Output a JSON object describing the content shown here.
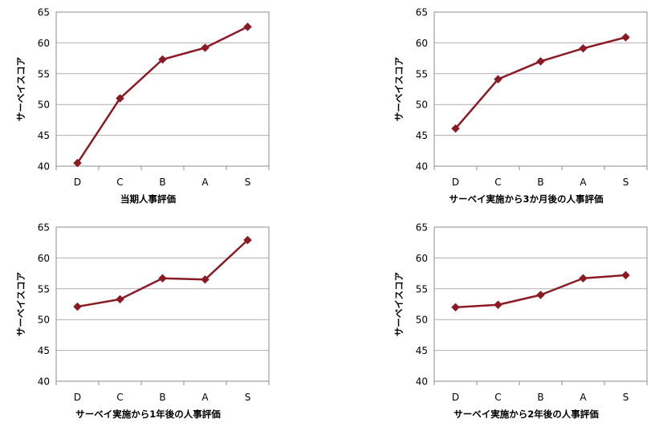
{
  "colors": {
    "series": "#8b1a24",
    "grid": "#b0b0b0",
    "frame": "#8c8c8c"
  },
  "chart_data": [
    {
      "type": "line",
      "categories": [
        "D",
        "C",
        "B",
        "A",
        "S"
      ],
      "series": [
        {
          "values": [
            40.5,
            51.0,
            57.3,
            59.2,
            62.6
          ]
        }
      ],
      "xlabel": "当期人事評価",
      "ylabel": "サーベイスコア",
      "ylim": [
        40,
        65
      ],
      "yticks": [
        "40",
        "45",
        "50",
        "55",
        "60",
        "65"
      ],
      "grid": true,
      "marker": "diamond"
    },
    {
      "type": "line",
      "categories": [
        "D",
        "C",
        "B",
        "A",
        "S"
      ],
      "series": [
        {
          "values": [
            46.1,
            54.1,
            57.0,
            59.1,
            60.9
          ]
        }
      ],
      "xlabel": "サーベイ実施から3か月後の人事評価",
      "ylabel": "サーベイスコア",
      "ylim": [
        40,
        65
      ],
      "yticks": [
        "40",
        "45",
        "50",
        "55",
        "60",
        "65"
      ],
      "grid": true,
      "marker": "diamond"
    },
    {
      "type": "line",
      "categories": [
        "D",
        "C",
        "B",
        "A",
        "S"
      ],
      "series": [
        {
          "values": [
            52.1,
            53.3,
            56.7,
            56.5,
            62.9
          ]
        }
      ],
      "xlabel": "サーベイ実施から1年後の人事評価",
      "ylabel": "サーベイスコア",
      "ylim": [
        40,
        65
      ],
      "yticks": [
        "40",
        "45",
        "50",
        "55",
        "60",
        "65"
      ],
      "grid": true,
      "marker": "diamond"
    },
    {
      "type": "line",
      "categories": [
        "D",
        "C",
        "B",
        "A",
        "S"
      ],
      "series": [
        {
          "values": [
            52.0,
            52.4,
            54.0,
            56.7,
            57.2
          ]
        }
      ],
      "xlabel": "サーベイ実施から2年後の人事評価",
      "ylabel": "サーベイスコア",
      "ylim": [
        40,
        65
      ],
      "yticks": [
        "40",
        "45",
        "50",
        "55",
        "60",
        "65"
      ],
      "grid": true,
      "marker": "diamond"
    }
  ]
}
